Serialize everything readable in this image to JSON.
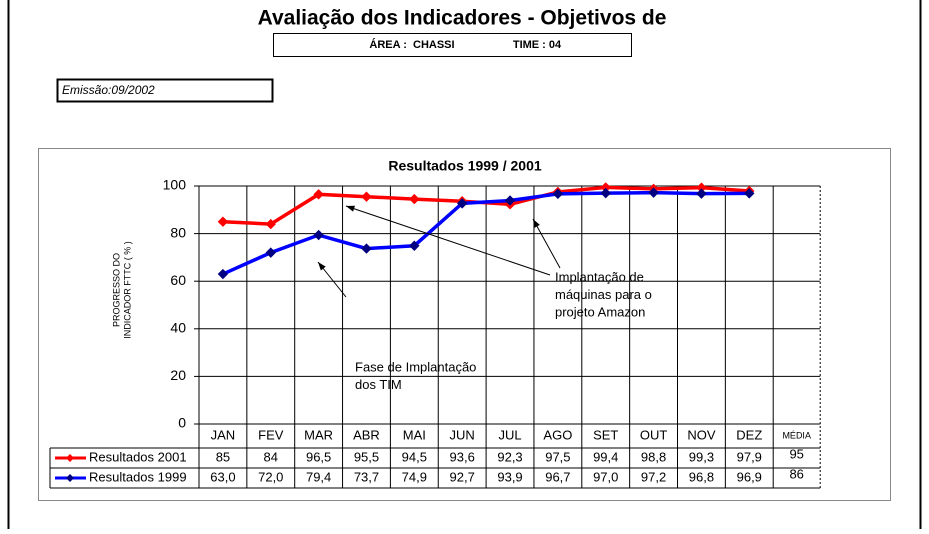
{
  "header": {
    "title": "Avaliação dos Indicadores  - Objetivos de",
    "area": "ÁREA :  CHASSI",
    "team": "TIME : 04",
    "emission": "Emissão:09/2002"
  },
  "chart_data": {
    "type": "line",
    "title": "Resultados 1999 / 2001",
    "y_label": [
      "PROGRESSO DO",
      "INDICADOR FTTC ( % )"
    ],
    "categories": [
      "JAN",
      "FEV",
      "MAR",
      "ABR",
      "MAI",
      "JUN",
      "JUL",
      "AGO",
      "SET",
      "OUT",
      "NOV",
      "DEZ"
    ],
    "average_label": "MÉDIA",
    "series": [
      {
        "name": "Resultados 2001",
        "color": "#ff0000",
        "marker_color": "#ff0000",
        "values": [
          85,
          84,
          96.5,
          95.5,
          94.5,
          93.6,
          92.3,
          97.5,
          99.4,
          98.8,
          99.3,
          97.9
        ],
        "value_labels": [
          "85",
          "84",
          "96,5",
          "95,5",
          "94,5",
          "93,6",
          "92,3",
          "97,5",
          "99,4",
          "98,8",
          "99,3",
          "97,9"
        ],
        "average": 95
      },
      {
        "name": "Resultados 1999",
        "color": "#0000ff",
        "marker_color": "#000080",
        "values": [
          63.0,
          72.0,
          79.4,
          73.7,
          74.9,
          92.7,
          93.9,
          96.7,
          97.0,
          97.2,
          96.8,
          96.9
        ],
        "value_labels": [
          "63,0",
          "72,0",
          "79,4",
          "73,7",
          "74,9",
          "92,7",
          "93,9",
          "96,7",
          "97,0",
          "97,2",
          "96,8",
          "96,9"
        ],
        "average": 86
      }
    ],
    "ylim": [
      0,
      100
    ],
    "yticks": [
      0,
      20,
      40,
      60,
      80,
      100
    ],
    "grid": true,
    "annotations": [
      {
        "lines": [
          "Implantação de",
          "máquinas para o",
          "projeto Amazon"
        ]
      },
      {
        "lines": [
          "Fase de Implantação",
          "dos TIM"
        ]
      }
    ]
  }
}
